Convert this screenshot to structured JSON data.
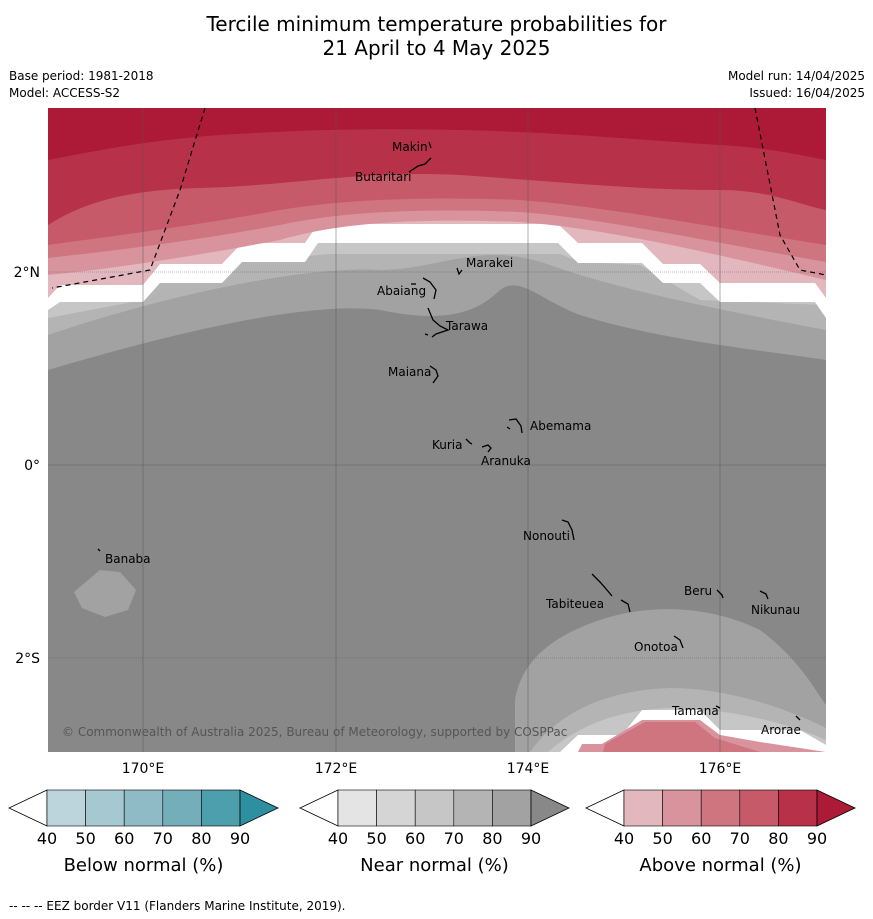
{
  "title_line1": "Tercile minimum temperature probabilities for",
  "title_line2": "21 April to 4 May 2025",
  "meta_left": [
    "Base period: 1981-2018",
    "Model: ACCESS-S2"
  ],
  "meta_right": [
    "Model run: 14/04/2025",
    "Issued: 16/04/2025"
  ],
  "lat_labels": [
    "2°N",
    "0°",
    "2°S"
  ],
  "lon_labels": [
    "170°E",
    "172°E",
    "174°E",
    "176°E"
  ],
  "islands": [
    "Makin",
    "Butaritari",
    "Marakei",
    "Abaiang",
    "Tarawa",
    "Maiana",
    "Abemama",
    "Kuria",
    "Aranuka",
    "Nonouti",
    "Banaba",
    "Tabiteuea",
    "Beru",
    "Nikunau",
    "Onotoa",
    "Tamana",
    "Arorae"
  ],
  "copyright": "© Commonwealth of Australia 2025, Bureau of Meteorology, supported by COSPPac",
  "colorbars": [
    {
      "label": "Below normal (%)",
      "ticks": [
        "40",
        "50",
        "60",
        "70",
        "80",
        "90"
      ],
      "colors": [
        "#bcd5dd",
        "#a6c8d1",
        "#8ebbc6",
        "#74aebb",
        "#4e9fae",
        "#2d8fa0"
      ]
    },
    {
      "label": "Near normal (%)",
      "ticks": [
        "40",
        "50",
        "60",
        "70",
        "80",
        "90"
      ],
      "colors": [
        "#e4e4e4",
        "#d5d5d5",
        "#c6c6c6",
        "#b4b4b4",
        "#a2a2a2",
        "#888888"
      ]
    },
    {
      "label": "Above normal (%)",
      "ticks": [
        "40",
        "50",
        "60",
        "70",
        "80",
        "90"
      ],
      "colors": [
        "#e3b7be",
        "#d9939d",
        "#cf7580",
        "#c65a68",
        "#b73148",
        "#ac1a38"
      ]
    }
  ],
  "footer": "-- -- -- EEZ border V11 (Flanders Marine Institute, 2019)."
}
